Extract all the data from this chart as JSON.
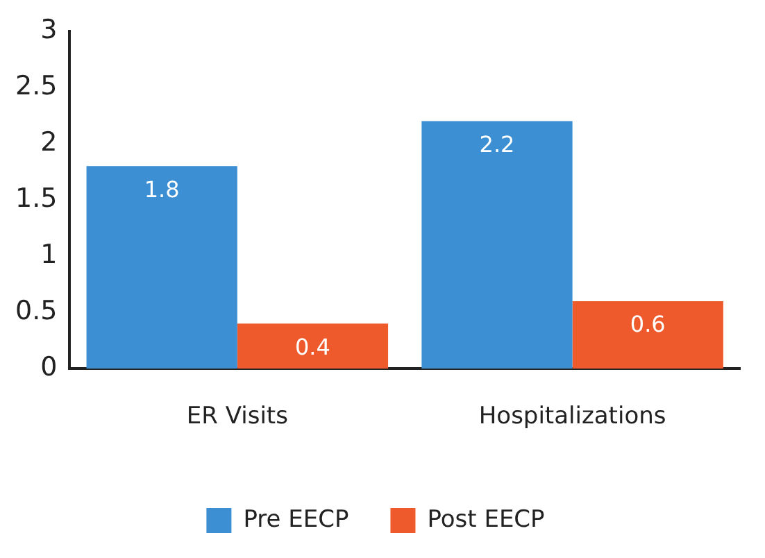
{
  "chart_data": {
    "type": "bar",
    "categories": [
      "ER Visits",
      "Hospitalizations"
    ],
    "series": [
      {
        "name": "Pre EECP",
        "color": "#3b8fd2",
        "values": [
          1.8,
          2.2
        ]
      },
      {
        "name": "Post EECP",
        "color": "#ef5a2c",
        "values": [
          0.4,
          0.6
        ]
      }
    ],
    "ylim": [
      0,
      3
    ],
    "yticks": [
      0,
      0.5,
      1,
      1.5,
      2,
      2.5,
      3
    ],
    "grid": false,
    "legend": "bottom",
    "data_labels": true
  }
}
